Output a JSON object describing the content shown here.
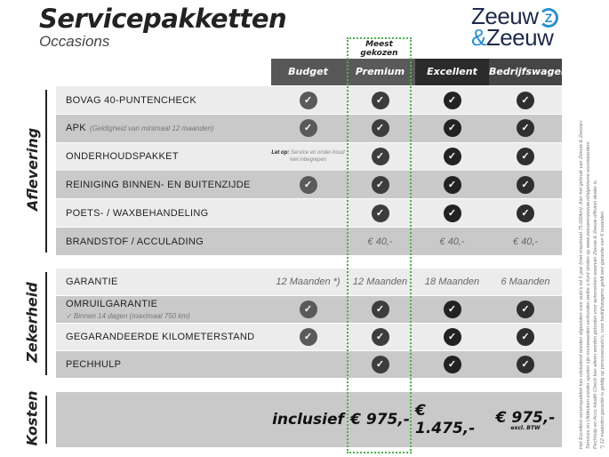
{
  "header": {
    "title": "Servicepakketten",
    "subtitle": "Occasions"
  },
  "logo": {
    "line1": "Zeeuw",
    "amp": "&",
    "line2": "Zeeuw"
  },
  "popular_label": "Meest gekozen",
  "columns": [
    {
      "label": "Budget",
      "color": "#575757"
    },
    {
      "label": "Premium",
      "color": "#5a5a5a"
    },
    {
      "label": "Excellent",
      "color": "#2b2b2b"
    },
    {
      "label": "Bedrijfswagens",
      "color": "#454545"
    }
  ],
  "check_colors": [
    "#5a5a5a",
    "#3d3d3d",
    "#222222",
    "#2f2f2f"
  ],
  "sections": [
    {
      "label": "Aflevering",
      "rows": [
        {
          "label": "BOVAG 40-PUNTENCHECK",
          "cells": [
            "check",
            "check",
            "check",
            "check"
          ]
        },
        {
          "label": "APK",
          "note": "(Geldigheid van minimaal 12 maanden)",
          "cells": [
            "check",
            "check",
            "check",
            "check"
          ]
        },
        {
          "label": "ONDERHOUDSPAKKET",
          "cells": [
            {
              "warn_bold": "Let op:",
              "warn": "Service en onder-houd niet inbegrepen"
            },
            "check",
            "check",
            "check"
          ]
        },
        {
          "label": "REINIGING BINNEN- EN BUITENZIJDE",
          "cells": [
            "check",
            "check",
            "check",
            "check"
          ]
        },
        {
          "label": "POETS- / WAXBEHANDELING",
          "cells": [
            "",
            "check",
            "check",
            "check"
          ]
        },
        {
          "label": "BRANDSTOF / ACCULADING",
          "cells": [
            "",
            "€ 40,-",
            "€ 40,-",
            "€ 40,-"
          ]
        }
      ]
    },
    {
      "label": "Zekerheid",
      "rows": [
        {
          "label": "GARANTIE",
          "cells": [
            "12 Maanden *)",
            "12 Maanden",
            "18 Maanden",
            "6 Maanden"
          ]
        },
        {
          "label": "OMRUILGARANTIE",
          "sub": "✓  Binnen 14 dagen (maximaal 750 km)",
          "cells": [
            "check",
            "check",
            "check",
            "check"
          ]
        },
        {
          "label": "GEGARANDEERDE KILOMETERSTAND",
          "cells": [
            "check",
            "check",
            "check",
            "check"
          ]
        },
        {
          "label": "PECHHULP",
          "cells": [
            "",
            "check",
            "check",
            "check"
          ]
        }
      ]
    },
    {
      "label": "Kosten",
      "rows": [
        {
          "label": "",
          "cells": [
            {
              "price": "inclusief"
            },
            {
              "price": "€ 975,-"
            },
            {
              "price": "€ 1.475,-"
            },
            {
              "price": "€ 975,-",
              "sub": "excl. BTW"
            }
          ]
        }
      ]
    }
  ],
  "footnotes": [
    "Het Excellent-servicepakket kan uitsluitend worden afgesloten voor auto's tot 5 jaar (met maximaal 75.000km). Aan het gebruik van Zeeuw & Zeeuw+",
    "Services en Uitdeuken zonder spuiten zijn voorwaarden verbonden welke u kunt vinden op www.zeeuwenzeeuw.nl/algemene-voorwaarden/.",
    "Pechhulp en Accu Health Check kan alleen worden geboden voor automerken waarvan Zeeuw & Zeeuw officieel dealer is.",
    "*) 12 maanden garantie is geldig op personenauto's, voor bedrijfswagens geldt een garantie van 6 maanden."
  ]
}
